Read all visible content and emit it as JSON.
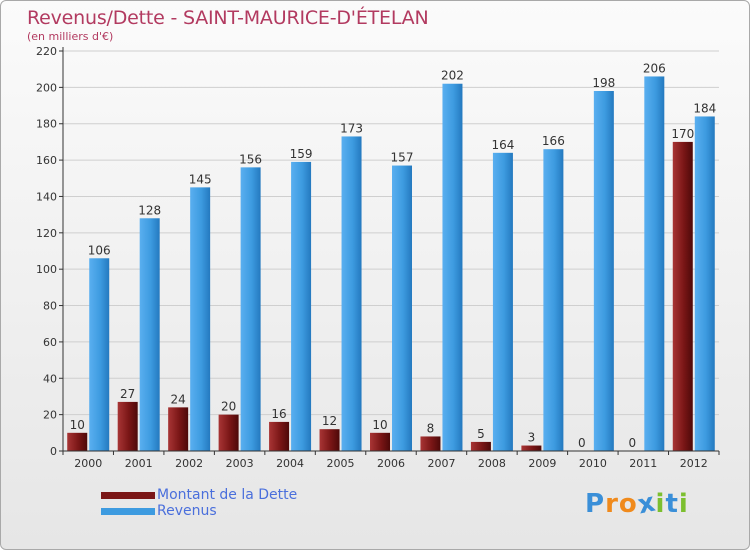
{
  "title": "Revenus/Dette - SAINT-MAURICE-D'ÉTELAN",
  "subtitle": "(en milliers d'€)",
  "logo": {
    "text": "Proxiti",
    "letters": [
      "P",
      "r",
      "o",
      "x",
      "i",
      "t",
      "i"
    ],
    "letter_colors": [
      "#3a8fd8",
      "#f08a1c",
      "#f08a1c",
      "#3a8fd8",
      "#7cbf2f",
      "#3a8fd8",
      "#7cbf2f"
    ]
  },
  "legend": [
    {
      "label": "Montant de la Dette",
      "color": "#7a1616"
    },
    {
      "label": "Revenus",
      "color": "#3d9be0"
    }
  ],
  "colors": {
    "dette": "#7a1616",
    "revenus": "#3d9be0",
    "axis": "#333333",
    "grid": "#cfcfcf",
    "label": "#333333"
  },
  "chart_data": {
    "type": "bar",
    "title": "Revenus/Dette - SAINT-MAURICE-D'ÉTELAN",
    "subtitle": "(en milliers d'€)",
    "categories": [
      "2000",
      "2001",
      "2002",
      "2003",
      "2004",
      "2005",
      "2006",
      "2007",
      "2008",
      "2009",
      "2010",
      "2011",
      "2012"
    ],
    "series": [
      {
        "name": "Montant de la Dette",
        "values": [
          10,
          27,
          24,
          20,
          16,
          12,
          10,
          8,
          5,
          3,
          0,
          0,
          170
        ]
      },
      {
        "name": "Revenus",
        "values": [
          106,
          128,
          145,
          156,
          159,
          173,
          157,
          202,
          164,
          166,
          198,
          206,
          184
        ]
      }
    ],
    "ylim": [
      0,
      220
    ],
    "yticks": [
      0,
      20,
      40,
      60,
      80,
      100,
      120,
      140,
      160,
      180,
      200,
      220
    ],
    "grid": true,
    "legend_position": "bottom-left"
  }
}
